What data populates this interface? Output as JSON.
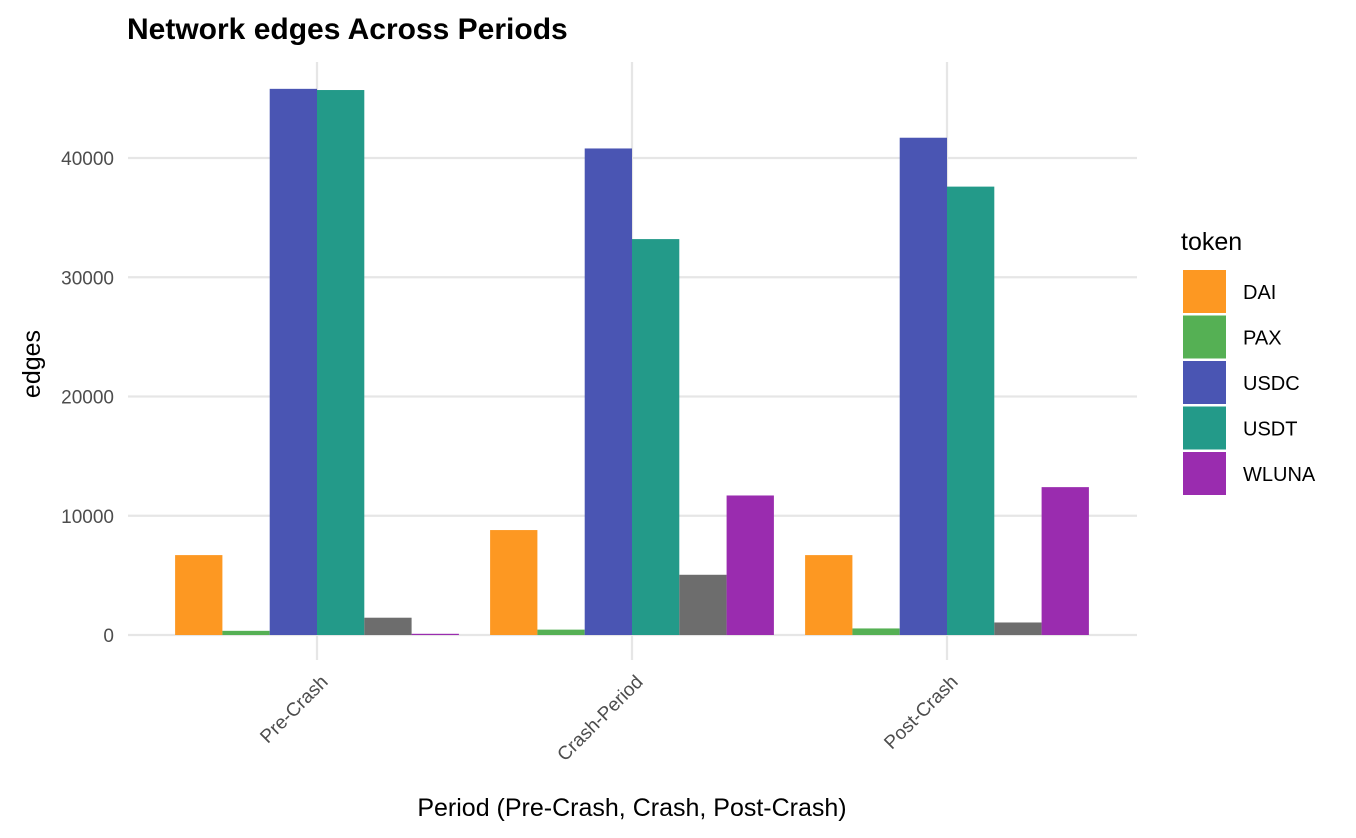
{
  "chart_data": {
    "type": "bar",
    "title": "Network edges Across Periods",
    "xlabel": "Period (Pre-Crash, Crash, Post-Crash)",
    "ylabel": "edges",
    "categories": [
      "Pre-Crash",
      "Crash-Period",
      "Post-Crash"
    ],
    "ylim": [
      0,
      48000
    ],
    "yticks": [
      0,
      10000,
      20000,
      30000,
      40000
    ],
    "grid": true,
    "legend": {
      "title": "token",
      "placement": "right"
    },
    "series": [
      {
        "name": "DAI",
        "color": "#FD9822",
        "values": [
          6700,
          8800,
          6700
        ]
      },
      {
        "name": "PAX",
        "color": "#55B054",
        "values": [
          350,
          450,
          550
        ]
      },
      {
        "name": "USDC",
        "color": "#4A55B3",
        "values": [
          45800,
          40800,
          41700
        ]
      },
      {
        "name": "USDT",
        "color": "#239A89",
        "values": [
          45700,
          33200,
          37600
        ]
      },
      {
        "color": "#6D6D6D",
        "values": [
          1450,
          5050,
          1050
        ]
      },
      {
        "name": "WLUNA",
        "color": "#9A2CAF",
        "values": [
          100,
          11700,
          12400
        ]
      }
    ]
  }
}
